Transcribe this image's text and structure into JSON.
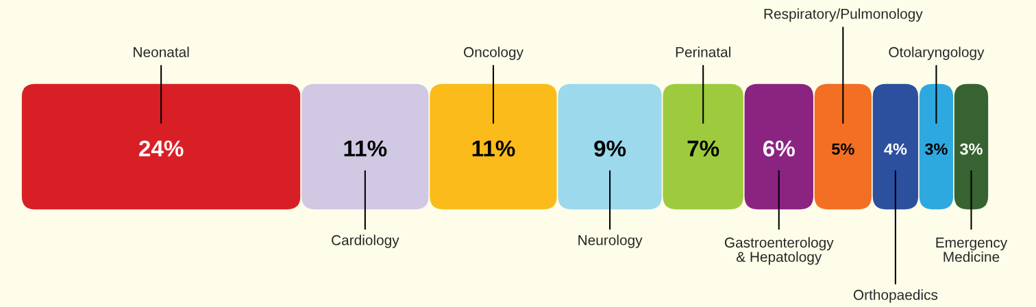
{
  "chart_data": {
    "type": "bar",
    "orientation": "horizontal",
    "stacked": true,
    "legend": false,
    "categories": [
      null
    ],
    "series": [
      {
        "name": "Neonatal",
        "color": "#d91f26",
        "values": [
          24
        ],
        "value_labels": [
          "24%"
        ]
      },
      {
        "name": "Cardiology",
        "color": "#d1c8e3",
        "values": [
          11
        ],
        "value_labels": [
          "11%"
        ]
      },
      {
        "name": "Oncology",
        "color": "#fbbb1a",
        "values": [
          11
        ],
        "value_labels": [
          "11%"
        ]
      },
      {
        "name": "Neurology",
        "color": "#9cd9ec",
        "values": [
          9
        ],
        "value_labels": [
          "9%"
        ]
      },
      {
        "name": "Perinatal",
        "color": "#9ecb3e",
        "values": [
          7
        ],
        "value_labels": [
          "7%"
        ]
      },
      {
        "name": "Gastroenterology\n& Hepatology",
        "color": "#8a2480",
        "values": [
          6
        ],
        "value_labels": [
          "6%"
        ]
      },
      {
        "name": "Respiratory/Pulmonology",
        "color": "#f26f23",
        "values": [
          5
        ],
        "value_labels": [
          "5%"
        ]
      },
      {
        "name": "Orthopaedics",
        "color": "#2c4f9e",
        "values": [
          4
        ],
        "value_labels": [
          "4%"
        ]
      },
      {
        "name": "Otolaryngology",
        "color": "#2ea9e0",
        "values": [
          3
        ],
        "value_labels": [
          "3%"
        ]
      },
      {
        "name": "Emergency\nMedicine",
        "color": "#376332",
        "values": [
          3
        ],
        "value_labels": [
          "3%"
        ]
      }
    ]
  }
}
